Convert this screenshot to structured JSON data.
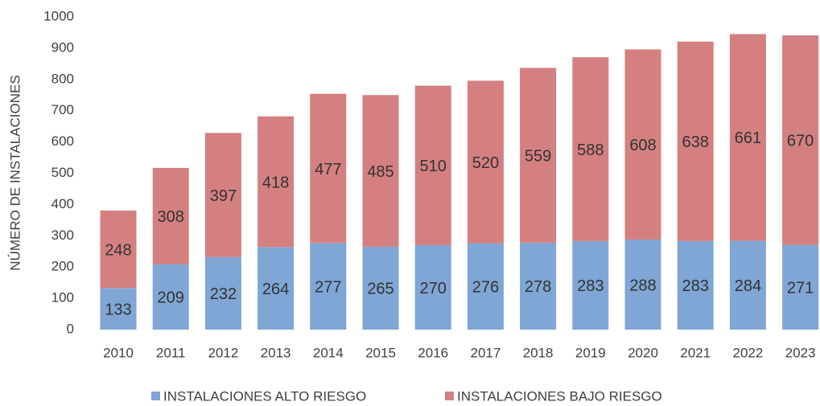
{
  "chart_data": {
    "type": "stacked_bar",
    "y_label": "NÚMERO DE INSTALACIONES",
    "categories": [
      "2010",
      "2011",
      "2012",
      "2013",
      "2014",
      "2015",
      "2016",
      "2017",
      "2018",
      "2019",
      "2020",
      "2021",
      "2022",
      "2023"
    ],
    "series": [
      {
        "name": "INSTALACIONES ALTO RIESGO",
        "color": "#7fa6d4",
        "values": [
          133,
          209,
          232,
          264,
          277,
          265,
          270,
          276,
          278,
          283,
          288,
          283,
          284,
          271
        ]
      },
      {
        "name": "INSTALACIONES BAJO RIESGO",
        "color": "#d48080",
        "values": [
          248,
          308,
          397,
          418,
          477,
          485,
          510,
          520,
          559,
          588,
          608,
          638,
          661,
          670
        ]
      }
    ],
    "ylim": [
      0,
      1000
    ],
    "yticks": [
      0,
      100,
      200,
      300,
      400,
      500,
      600,
      700,
      800,
      900,
      1000
    ],
    "grid": false,
    "legend": "bottom"
  }
}
